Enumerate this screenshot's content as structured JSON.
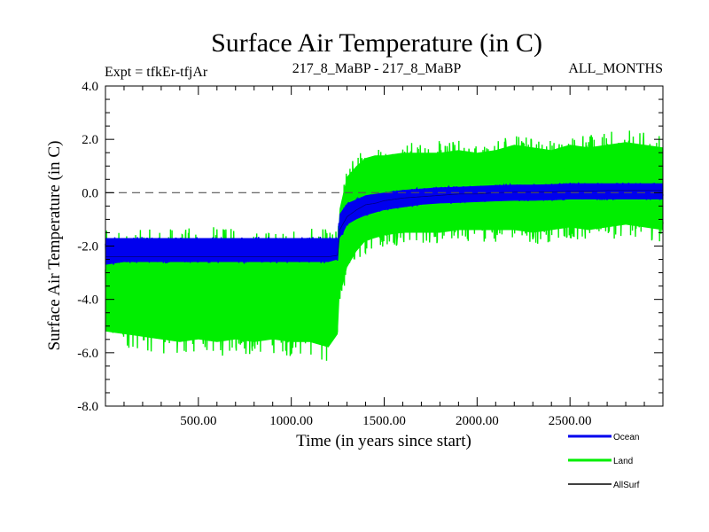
{
  "chart_data": {
    "type": "line",
    "title": "Surface Air Temperature (in C)",
    "subtitle_left": "Expt = tfkEr-tfjAr",
    "subtitle_center": "217_8_MaBP - 217_8_MaBP",
    "subtitle_right": "ALL_MONTHS",
    "xlabel": "Time (in years since start)",
    "ylabel": "Surface Air Temperature (in C)",
    "xlim": [
      0,
      3000
    ],
    "ylim": [
      -8.0,
      4.0
    ],
    "x_ticks": [
      500,
      1000,
      1500,
      2000,
      2500
    ],
    "x_tick_labels": [
      "500.00",
      "1000.00",
      "1500.00",
      "2000.00",
      "2500.00"
    ],
    "y_ticks": [
      -8,
      -6,
      -4,
      -2,
      0,
      2,
      4
    ],
    "y_tick_labels": [
      "-8.0",
      "-6.0",
      "-4.0",
      "-2.0",
      "0.0",
      "2.0",
      "4.0"
    ],
    "zero_line": "dashed",
    "grid": false,
    "legend_position": "bottom-right",
    "series": [
      {
        "name": "Land",
        "color": "#00ee00",
        "x": [
          0,
          100,
          200,
          300,
          400,
          500,
          600,
          700,
          800,
          900,
          1000,
          1100,
          1200,
          1250,
          1260,
          1280,
          1300,
          1350,
          1400,
          1450,
          1500,
          1600,
          1700,
          1800,
          1900,
          2000,
          2100,
          2200,
          2300,
          2400,
          2500,
          2600,
          2700,
          2800,
          2900,
          3000
        ],
        "mean": [
          -3.6,
          -3.6,
          -3.6,
          -3.6,
          -3.6,
          -3.6,
          -3.6,
          -3.6,
          -3.6,
          -3.6,
          -3.6,
          -3.6,
          -3.6,
          -3.5,
          -2.0,
          -1.6,
          -1.2,
          -0.8,
          -0.5,
          -0.4,
          -0.3,
          -0.2,
          -0.1,
          -0.1,
          0.0,
          0.0,
          0.05,
          0.1,
          0.1,
          0.1,
          0.15,
          0.15,
          0.2,
          0.2,
          0.2,
          0.2
        ],
        "low": [
          -5.2,
          -5.3,
          -5.4,
          -5.5,
          -5.6,
          -5.5,
          -5.6,
          -5.5,
          -5.6,
          -5.5,
          -5.6,
          -5.6,
          -5.8,
          -5.3,
          -3.8,
          -3.4,
          -2.8,
          -2.2,
          -1.8,
          -1.7,
          -1.6,
          -1.5,
          -1.5,
          -1.5,
          -1.4,
          -1.4,
          -1.4,
          -1.4,
          -1.5,
          -1.4,
          -1.3,
          -1.4,
          -1.3,
          -1.2,
          -1.3,
          -1.4
        ],
        "high": [
          -1.9,
          -1.9,
          -1.9,
          -1.9,
          -1.8,
          -1.9,
          -1.8,
          -1.9,
          -1.9,
          -1.9,
          -1.9,
          -1.9,
          -1.9,
          -1.9,
          -0.6,
          0.0,
          0.6,
          1.0,
          1.3,
          1.4,
          1.4,
          1.5,
          1.5,
          1.5,
          1.6,
          1.5,
          1.6,
          1.8,
          1.7,
          1.6,
          1.8,
          1.7,
          1.8,
          1.9,
          1.8,
          1.7
        ],
        "min": -6.3,
        "max": 2.6
      },
      {
        "name": "Ocean",
        "color": "#0000ee",
        "x": [
          0,
          100,
          200,
          300,
          400,
          500,
          600,
          700,
          800,
          900,
          1000,
          1100,
          1200,
          1250,
          1260,
          1280,
          1300,
          1350,
          1400,
          1450,
          1500,
          1600,
          1700,
          1800,
          1900,
          2000,
          2100,
          2200,
          2300,
          2400,
          2500,
          2600,
          2700,
          2800,
          2900,
          3000
        ],
        "mean": [
          -2.2,
          -2.15,
          -2.15,
          -2.15,
          -2.15,
          -2.15,
          -2.15,
          -2.15,
          -2.15,
          -2.15,
          -2.15,
          -2.15,
          -2.15,
          -2.1,
          -1.2,
          -1.0,
          -0.8,
          -0.6,
          -0.45,
          -0.4,
          -0.3,
          -0.2,
          -0.15,
          -0.1,
          -0.08,
          -0.05,
          -0.02,
          0.0,
          0.0,
          0.02,
          0.05,
          0.05,
          0.05,
          0.05,
          0.05,
          0.05
        ],
        "low": [
          -2.7,
          -2.6,
          -2.6,
          -2.6,
          -2.6,
          -2.6,
          -2.6,
          -2.6,
          -2.6,
          -2.6,
          -2.6,
          -2.6,
          -2.6,
          -2.5,
          -1.7,
          -1.5,
          -1.2,
          -1.0,
          -0.85,
          -0.75,
          -0.65,
          -0.55,
          -0.45,
          -0.4,
          -0.38,
          -0.35,
          -0.32,
          -0.3,
          -0.3,
          -0.28,
          -0.25,
          -0.25,
          -0.25,
          -0.25,
          -0.25,
          -0.25
        ],
        "high": [
          -1.7,
          -1.7,
          -1.7,
          -1.7,
          -1.7,
          -1.7,
          -1.7,
          -1.7,
          -1.7,
          -1.7,
          -1.7,
          -1.7,
          -1.7,
          -1.7,
          -0.8,
          -0.6,
          -0.4,
          -0.25,
          -0.1,
          -0.05,
          0.0,
          0.1,
          0.15,
          0.2,
          0.22,
          0.25,
          0.28,
          0.3,
          0.3,
          0.32,
          0.35,
          0.35,
          0.35,
          0.35,
          0.35,
          0.35
        ]
      },
      {
        "name": "AllSurf",
        "color": "#000000",
        "x": [
          0,
          100,
          200,
          300,
          400,
          500,
          600,
          700,
          800,
          900,
          1000,
          1100,
          1200,
          1250,
          1260,
          1280,
          1300,
          1350,
          1400,
          1450,
          1500,
          1600,
          1700,
          1800,
          1900,
          2000,
          2100,
          2200,
          2300,
          2400,
          2500,
          2600,
          2700,
          2800,
          2900,
          3000
        ],
        "mean": [
          -2.4,
          -2.4,
          -2.4,
          -2.4,
          -2.4,
          -2.4,
          -2.4,
          -2.4,
          -2.4,
          -2.4,
          -2.4,
          -2.4,
          -2.4,
          -2.35,
          -1.4,
          -1.15,
          -0.9,
          -0.65,
          -0.45,
          -0.4,
          -0.3,
          -0.2,
          -0.15,
          -0.1,
          -0.05,
          -0.05,
          0.0,
          0.02,
          0.02,
          0.03,
          0.06,
          0.06,
          0.08,
          0.08,
          0.08,
          0.08
        ]
      }
    ]
  }
}
